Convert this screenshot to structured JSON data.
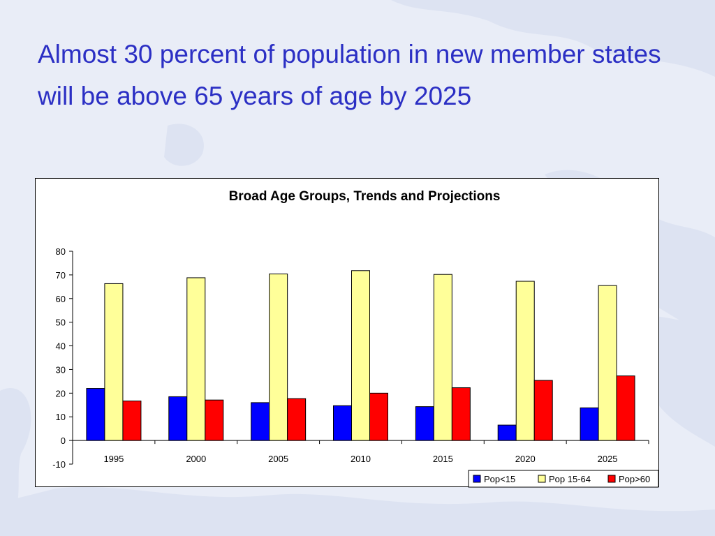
{
  "slide": {
    "title": "Almost 30 percent of population in new member states will be above 65 years of age by 2025"
  },
  "chart_data": {
    "type": "bar",
    "title": "Broad Age Groups, Trends and Projections",
    "xlabel": "",
    "ylabel": "",
    "ylim": [
      -10,
      80
    ],
    "yticks": [
      -10,
      0,
      10,
      20,
      30,
      40,
      50,
      60,
      70,
      80
    ],
    "categories": [
      "1995",
      "2000",
      "2005",
      "2010",
      "2015",
      "2020",
      "2025"
    ],
    "series": [
      {
        "name": "Pop<15",
        "color": "#0000ff",
        "values": [
          22,
          18.5,
          16,
          14.7,
          14.3,
          6.5,
          13.8
        ]
      },
      {
        "name": "Pop 15-64",
        "color": "#ffff99",
        "values": [
          66.3,
          68.8,
          70.4,
          71.8,
          70.2,
          67.3,
          65.5
        ]
      },
      {
        "name": "Pop>60",
        "color": "#ff0000",
        "values": [
          16.7,
          17.1,
          17.7,
          20,
          22.3,
          25.4,
          27.3
        ]
      }
    ],
    "legend_position": "bottom-right",
    "grid": false
  }
}
